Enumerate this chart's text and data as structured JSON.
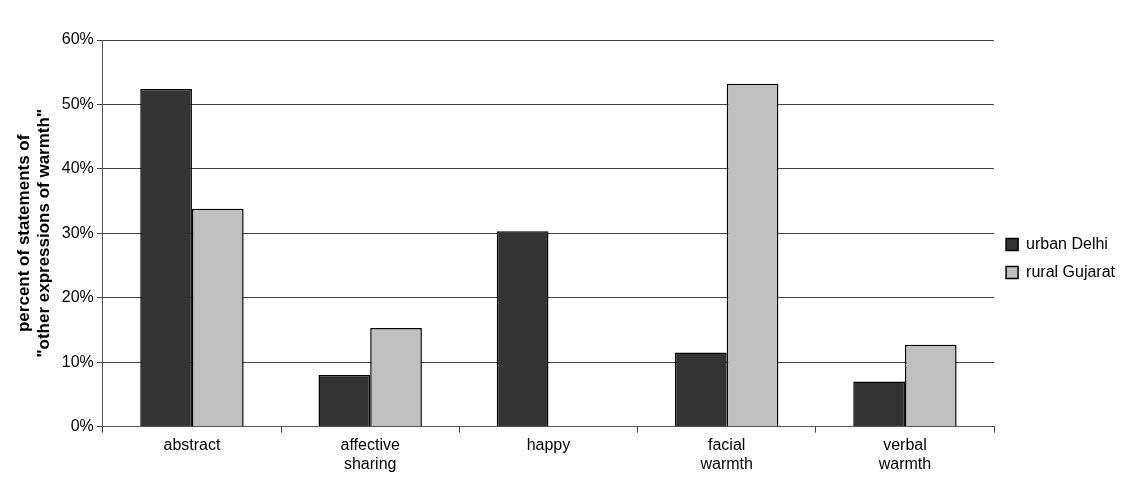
{
  "chart_data": {
    "type": "bar",
    "ylabel": "percent of statements of\n\"other expressions of warmth\"",
    "categories": [
      "abstract",
      "affective sharing",
      "happy",
      "facial warmth",
      "verbal warmth"
    ],
    "series": [
      {
        "name": "urban Delhi",
        "color": "#333333",
        "values": [
          52.4,
          8.0,
          30.3,
          11.5,
          7.0
        ]
      },
      {
        "name": "rural Gujarat",
        "color": "#c0c0c0",
        "values": [
          33.8,
          15.3,
          0,
          53.2,
          12.7
        ]
      }
    ],
    "ylim": [
      0,
      60
    ],
    "yticks": [
      {
        "value": 0,
        "label": "0%"
      },
      {
        "value": 10,
        "label": "10%"
      },
      {
        "value": 20,
        "label": "20%"
      },
      {
        "value": 30,
        "label": "30%"
      },
      {
        "value": 40,
        "label": "40%"
      },
      {
        "value": 50,
        "label": "50%"
      },
      {
        "value": 60,
        "label": "60%"
      }
    ],
    "grid": "y",
    "legend": "right"
  }
}
